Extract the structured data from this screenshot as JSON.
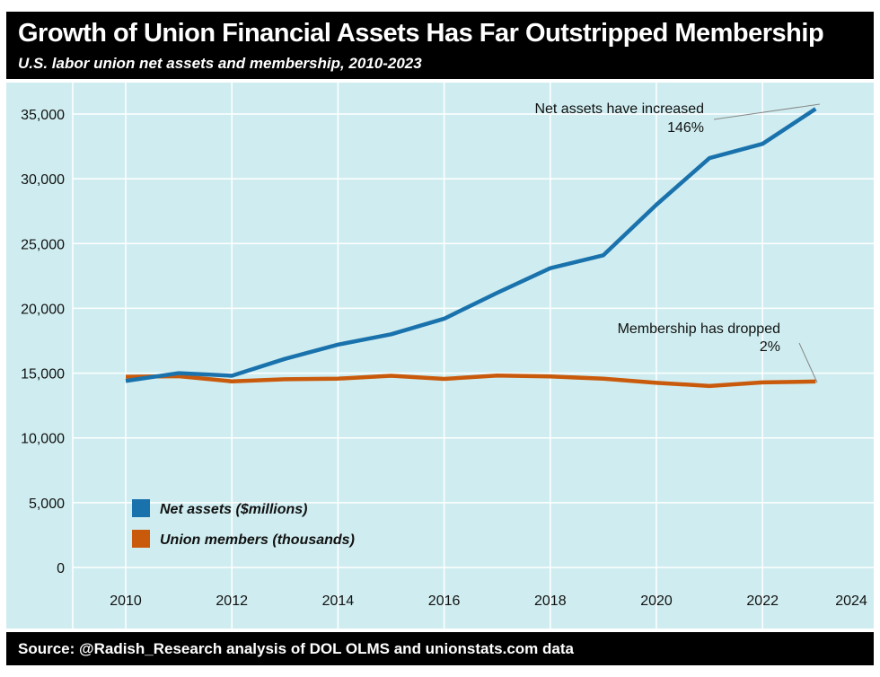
{
  "header": {
    "title": "Growth of Union Financial Assets Has Far Outstripped Membership",
    "subtitle": "U.S. labor union net assets and membership, 2010-2023"
  },
  "footer": {
    "source": "Source: @Radish_Research analysis of DOL OLMS and unionstats.com data"
  },
  "colors": {
    "background": "#cfedf0",
    "net_assets": "#1a72ad",
    "members": "#c95a0c",
    "grid": "#ffffff"
  },
  "chart_data": {
    "type": "line",
    "title": "Growth of Union Financial Assets Has Far Outstripped Membership",
    "subtitle": "U.S. labor union net assets and membership, 2010-2023",
    "x": [
      2010,
      2011,
      2012,
      2013,
      2014,
      2015,
      2016,
      2017,
      2018,
      2019,
      2020,
      2021,
      2022,
      2023
    ],
    "series": [
      {
        "name": "Net assets ($millions)",
        "values": [
          14400,
          15000,
          14800,
          16100,
          17200,
          18000,
          19200,
          21200,
          23100,
          24100,
          28000,
          31600,
          32700,
          35400
        ]
      },
      {
        "name": "Union members (thousands)",
        "values": [
          14715,
          14764,
          14366,
          14528,
          14576,
          14795,
          14555,
          14817,
          14744,
          14574,
          14253,
          14012,
          14285,
          14355
        ]
      }
    ],
    "xlim": [
      2009,
      2024
    ],
    "ylim": [
      0,
      35000
    ],
    "xticks": [
      "2010",
      "2012",
      "2014",
      "2016",
      "2018",
      "2020",
      "2022",
      "2024"
    ],
    "yticks": [
      "0",
      "5,000",
      "10,000",
      "15,000",
      "20,000",
      "25,000",
      "30,000",
      "35,000"
    ],
    "grid": true,
    "legend": "bottom-left",
    "annotations": [
      {
        "line1": "Net assets have increased",
        "line2": "146%"
      },
      {
        "line1": "Membership has dropped",
        "line2": "2%"
      }
    ]
  }
}
